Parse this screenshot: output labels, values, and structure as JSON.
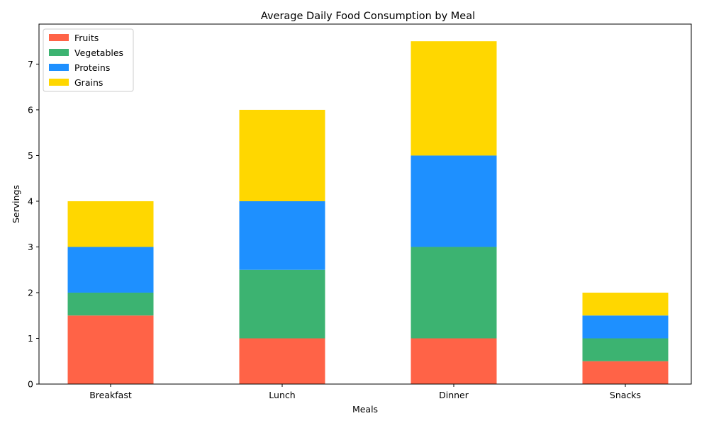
{
  "chart_data": {
    "type": "bar",
    "stacked": true,
    "title": "Average Daily Food Consumption by Meal",
    "xlabel": "Meals",
    "ylabel": "Servings",
    "categories": [
      "Breakfast",
      "Lunch",
      "Dinner",
      "Snacks"
    ],
    "series": [
      {
        "name": "Fruits",
        "color": "#ff6347",
        "values": [
          1.5,
          1,
          1,
          0.5
        ]
      },
      {
        "name": "Vegetables",
        "color": "#3cb371",
        "values": [
          0.5,
          1.5,
          2,
          0.5
        ]
      },
      {
        "name": "Proteins",
        "color": "#1e90ff",
        "values": [
          1,
          1.5,
          2,
          0.5
        ]
      },
      {
        "name": "Grains",
        "color": "#ffd700",
        "values": [
          1,
          2,
          2.5,
          0.5
        ]
      }
    ],
    "ylim": [
      0,
      7.875
    ],
    "yticks": [
      0,
      1,
      2,
      3,
      4,
      5,
      6,
      7
    ],
    "legend": "top-left",
    "grid": false
  }
}
